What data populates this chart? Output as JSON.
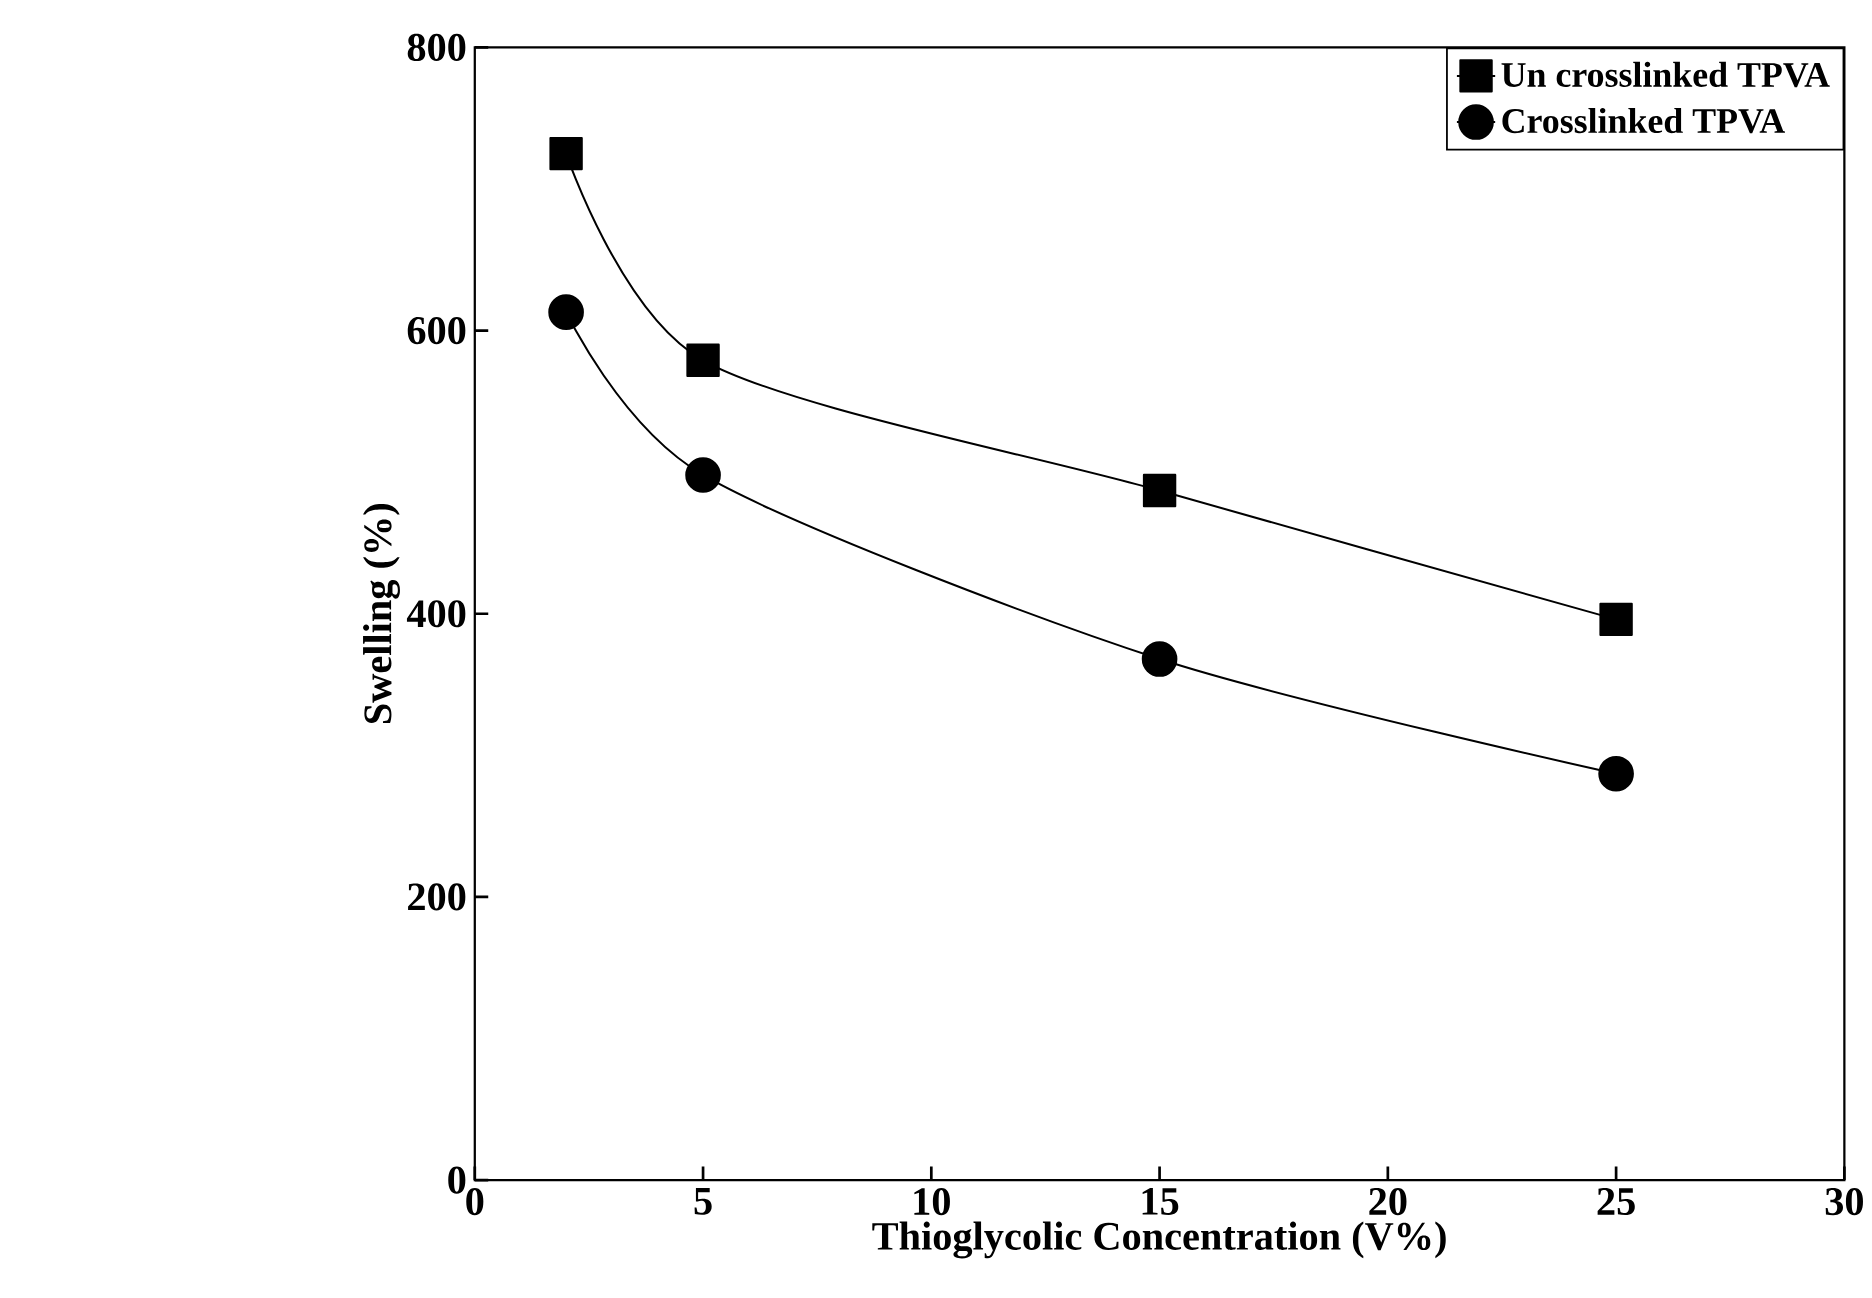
{
  "chart_data": {
    "type": "line",
    "xlabel": "Thioglycolic Concentration (V%)",
    "ylabel": "Swelling (%)",
    "xlim": [
      0,
      30
    ],
    "ylim": [
      0,
      800
    ],
    "xticks": [
      0,
      5,
      10,
      15,
      20,
      25,
      30
    ],
    "yticks": [
      0,
      200,
      400,
      600,
      800
    ],
    "legend": "top right",
    "grid": false,
    "line_style": "solid",
    "series": [
      {
        "name": "Un crosslinked TPVA",
        "color": "#000000",
        "marker": "square",
        "x": [
          2,
          5,
          15,
          25
        ],
        "values": [
          725,
          579,
          487,
          396
        ]
      },
      {
        "name": "Crosslinked TPVA",
        "color": "#000000",
        "marker": "circle",
        "x": [
          2,
          5,
          15,
          25
        ],
        "values": [
          613,
          498,
          368,
          287
        ]
      }
    ]
  }
}
